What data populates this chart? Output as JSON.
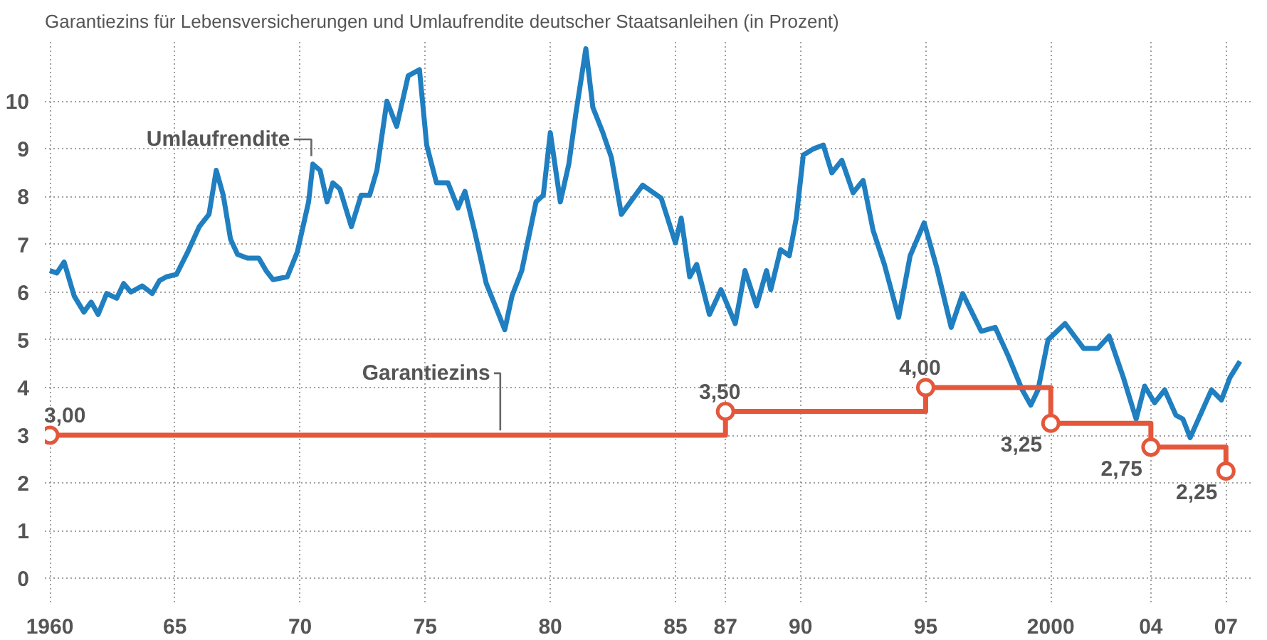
{
  "chart_data": {
    "type": "line",
    "title": "Garantiezins für Lebensversicherungen und Umlaufrendite deutscher Staatsanleihen (in Prozent)",
    "xlim": [
      1959.8,
      2008.1
    ],
    "ylim": [
      -0.5,
      11.3
    ],
    "xticks": [
      {
        "value": 1960,
        "label": "1960"
      },
      {
        "value": 1965,
        "label": "65"
      },
      {
        "value": 1970,
        "label": "70"
      },
      {
        "value": 1975,
        "label": "75"
      },
      {
        "value": 1980,
        "label": "80"
      },
      {
        "value": 1985,
        "label": "85"
      },
      {
        "value": 1987,
        "label": "87"
      },
      {
        "value": 1990,
        "label": "90"
      },
      {
        "value": 1995,
        "label": "95"
      },
      {
        "value": 2000,
        "label": "2000"
      },
      {
        "value": 2004,
        "label": "04"
      },
      {
        "value": 2007,
        "label": "07"
      }
    ],
    "yticks": [
      0,
      1,
      2,
      3,
      4,
      5,
      6,
      7,
      8,
      9,
      10
    ],
    "grid": true,
    "series": [
      {
        "name": "Umlaufrendite",
        "color": "#1f7fc0",
        "marker": "none",
        "x": [
          1960.0,
          1960.28,
          1960.57,
          1960.97,
          1961.36,
          1961.65,
          1961.93,
          1962.27,
          1962.67,
          1962.95,
          1963.24,
          1963.69,
          1964.09,
          1964.38,
          1964.66,
          1965.06,
          1965.51,
          1965.97,
          1966.36,
          1966.65,
          1966.93,
          1967.22,
          1967.5,
          1967.9,
          1968.35,
          1968.64,
          1968.92,
          1969.49,
          1969.89,
          1970.34,
          1970.51,
          1970.8,
          1971.08,
          1971.31,
          1971.59,
          1972.05,
          1972.44,
          1972.78,
          1973.07,
          1973.47,
          1973.86,
          1974.32,
          1974.77,
          1975.06,
          1975.45,
          1975.91,
          1976.31,
          1976.59,
          1976.99,
          1977.44,
          1977.84,
          1978.18,
          1978.47,
          1978.86,
          1979.43,
          1979.72,
          1980.0,
          1980.4,
          1980.74,
          1981.02,
          1981.42,
          1981.7,
          1982.1,
          1982.44,
          1982.84,
          1983.69,
          1984.43,
          1985.0,
          1985.23,
          1985.57,
          1985.85,
          1986.36,
          1986.82,
          1987.39,
          1987.78,
          1988.24,
          1988.64,
          1988.81,
          1989.2,
          1989.55,
          1989.83,
          1990.11,
          1990.51,
          1990.91,
          1991.25,
          1991.65,
          1992.1,
          1992.5,
          1992.9,
          1993.35,
          1993.92,
          1994.38,
          1994.94,
          1995.45,
          1996.02,
          1996.48,
          1997.22,
          1997.78,
          1998.3,
          1998.86,
          1999.2,
          1999.49,
          1999.89,
          2000.57,
          2001.31,
          2001.88,
          2002.33,
          2002.9,
          2003.41,
          2003.75,
          2004.15,
          2004.55,
          2005.0,
          2005.28,
          2005.57,
          2005.97,
          2006.42,
          2006.82,
          2007.16,
          2007.56
        ],
        "values": [
          6.45,
          6.4,
          6.63,
          5.92,
          5.58,
          5.79,
          5.53,
          5.97,
          5.87,
          6.18,
          6.0,
          6.13,
          5.97,
          6.24,
          6.32,
          6.37,
          6.84,
          7.37,
          7.63,
          8.55,
          8.03,
          7.11,
          6.79,
          6.71,
          6.71,
          6.45,
          6.26,
          6.32,
          6.84,
          7.89,
          8.68,
          8.55,
          7.89,
          8.29,
          8.16,
          7.37,
          8.03,
          8.03,
          8.55,
          10.0,
          9.47,
          10.53,
          10.66,
          9.08,
          8.29,
          8.29,
          7.76,
          8.11,
          7.24,
          6.18,
          5.66,
          5.21,
          5.92,
          6.45,
          7.89,
          8.03,
          9.34,
          7.89,
          8.68,
          9.74,
          11.1,
          9.87,
          9.34,
          8.82,
          7.63,
          8.24,
          7.97,
          7.03,
          7.55,
          6.32,
          6.58,
          5.53,
          6.05,
          5.34,
          6.45,
          5.71,
          6.45,
          6.05,
          6.89,
          6.76,
          7.55,
          8.87,
          9.0,
          9.08,
          8.5,
          8.76,
          8.08,
          8.34,
          7.29,
          6.58,
          5.47,
          6.76,
          7.45,
          6.5,
          5.26,
          5.97,
          5.18,
          5.26,
          4.66,
          3.95,
          3.63,
          3.95,
          5.0,
          5.34,
          4.82,
          4.82,
          5.08,
          4.21,
          3.34,
          4.03,
          3.68,
          3.95,
          3.42,
          3.34,
          2.95,
          3.42,
          3.95,
          3.74,
          4.21,
          4.55
        ]
      },
      {
        "name": "Garantiezins",
        "type": "step",
        "color": "#e4573b",
        "marker": "circle",
        "x": [
          1960,
          1987,
          1995,
          2000,
          2004,
          2007
        ],
        "values": [
          3.0,
          3.5,
          4.0,
          3.25,
          2.75,
          2.25
        ],
        "value_labels": [
          "3,00",
          "3,50",
          "4,00",
          "3,25",
          "2,75",
          "2,25"
        ]
      }
    ]
  }
}
